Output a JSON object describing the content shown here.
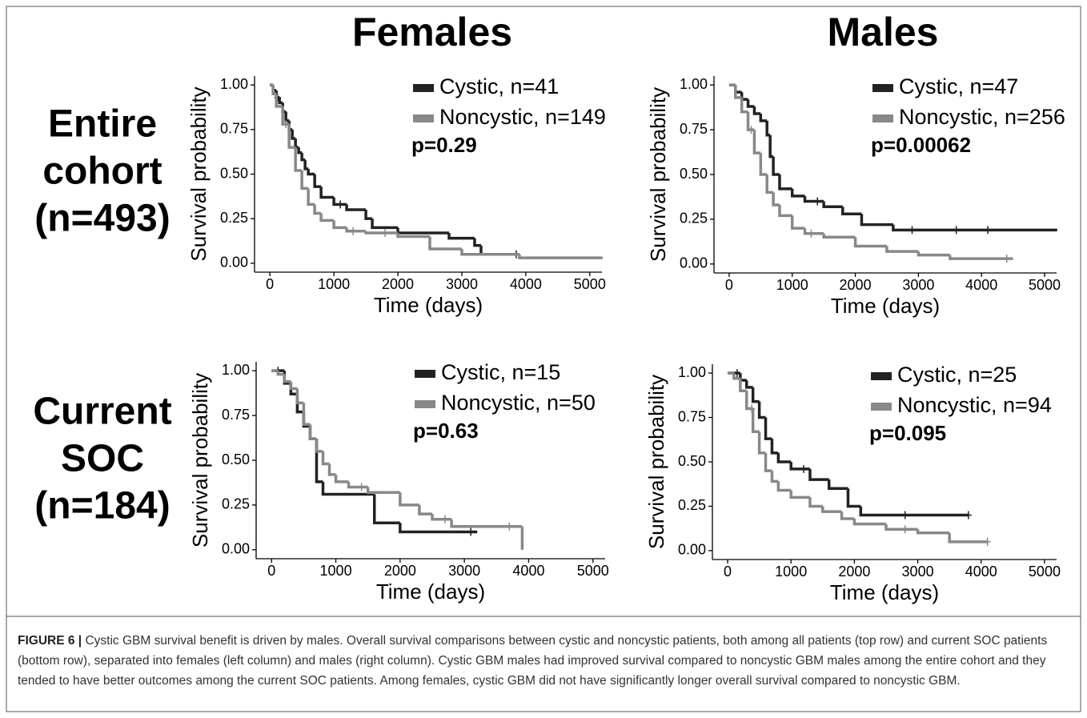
{
  "figure": {
    "column_titles": [
      "Females",
      "Males"
    ],
    "row_titles": [
      [
        "Entire",
        "cohort",
        "(n=493)"
      ],
      [
        "Current",
        "SOC",
        "(n=184)"
      ]
    ],
    "caption_label": "FIGURE 6 |",
    "caption": "Cystic GBM survival benefit is driven by males. Overall survival comparisons between cystic and noncystic patients, both among all patients (top row) and current SOC patients (bottom row), separated into females (left column) and males (right column). Cystic GBM males had improved survival compared to noncystic GBM males among the entire cohort and they tended to have better outcomes among the current SOC patients. Among females, cystic GBM did not have significantly longer overall survival compared to noncystic GBM."
  },
  "chart_data": [
    {
      "type": "step",
      "xlabel": "Time (days)",
      "ylabel": "Survival probability",
      "annotation": "p=0.29",
      "xlim": [
        -240,
        5190
      ],
      "ylim": [
        -0.05,
        1.05
      ],
      "xticks": [
        0,
        1000,
        2000,
        3000,
        4000,
        5000
      ],
      "yticks": [
        {
          "value": 0,
          "label": "0.00"
        },
        {
          "value": 0.25,
          "label": "0.25"
        },
        {
          "value": 0.5,
          "label": "0.50"
        },
        {
          "value": 0.75,
          "label": "0.75"
        },
        {
          "value": 1,
          "label": "1.00"
        }
      ],
      "series": [
        {
          "name": "Cystic, n=41",
          "color": "#222222",
          "x": [
            0,
            50,
            100,
            150,
            200,
            250,
            300,
            350,
            400,
            450,
            500,
            550,
            600,
            700,
            800,
            1000,
            1200,
            1500,
            1600,
            2000,
            2800,
            3200,
            3300,
            3900
          ],
          "values": [
            1,
            0.97,
            0.93,
            0.9,
            0.85,
            0.8,
            0.75,
            0.7,
            0.65,
            0.62,
            0.58,
            0.53,
            0.5,
            0.43,
            0.37,
            0.33,
            0.3,
            0.25,
            0.2,
            0.17,
            0.14,
            0.1,
            0.05,
            0.05
          ],
          "censored": {
            "x": [
              120,
              1100,
              3850
            ],
            "values": [
              0.93,
              0.33,
              0.05
            ]
          }
        },
        {
          "name": "Noncystic, n=149",
          "color": "#888888",
          "x": [
            0,
            50,
            100,
            200,
            300,
            400,
            500,
            600,
            700,
            800,
            1000,
            1200,
            1500,
            2000,
            2500,
            3000,
            3900,
            5200
          ],
          "values": [
            1,
            0.95,
            0.88,
            0.78,
            0.65,
            0.52,
            0.42,
            0.33,
            0.28,
            0.24,
            0.2,
            0.18,
            0.17,
            0.15,
            0.08,
            0.05,
            0.03,
            0.03
          ],
          "censored": {
            "x": [
              250,
              1300,
              1800
            ],
            "values": [
              0.78,
              0.18,
              0.17
            ]
          }
        }
      ]
    },
    {
      "type": "step",
      "xlabel": "Time (days)",
      "ylabel": "Survival probability",
      "annotation": "p=0.00062",
      "xlim": [
        -240,
        5190
      ],
      "ylim": [
        -0.05,
        1.05
      ],
      "xticks": [
        0,
        1000,
        2000,
        3000,
        4000,
        5000
      ],
      "yticks": [
        {
          "value": 0,
          "label": "0.00"
        },
        {
          "value": 0.25,
          "label": "0.25"
        },
        {
          "value": 0.5,
          "label": "0.50"
        },
        {
          "value": 0.75,
          "label": "0.75"
        },
        {
          "value": 1,
          "label": "1.00"
        }
      ],
      "series": [
        {
          "name": "Cystic, n=47",
          "color": "#222222",
          "x": [
            0,
            100,
            200,
            300,
            400,
            500,
            600,
            650,
            700,
            800,
            1000,
            1200,
            1500,
            1800,
            2100,
            2600,
            5200
          ],
          "values": [
            1,
            0.96,
            0.92,
            0.88,
            0.84,
            0.8,
            0.72,
            0.6,
            0.5,
            0.42,
            0.38,
            0.35,
            0.32,
            0.28,
            0.22,
            0.19,
            0.19
          ],
          "censored": {
            "x": [
              1400,
              2900,
              3600,
              4100
            ],
            "values": [
              0.35,
              0.19,
              0.19,
              0.19
            ]
          }
        },
        {
          "name": "Noncystic, n=256",
          "color": "#888888",
          "x": [
            0,
            100,
            200,
            300,
            400,
            500,
            600,
            700,
            800,
            1000,
            1200,
            1500,
            2000,
            2500,
            3000,
            3500,
            4500
          ],
          "values": [
            1,
            0.93,
            0.85,
            0.75,
            0.62,
            0.5,
            0.4,
            0.33,
            0.27,
            0.2,
            0.17,
            0.15,
            0.1,
            0.07,
            0.05,
            0.03,
            0.03
          ],
          "censored": {
            "x": [
              350,
              1300,
              4400
            ],
            "values": [
              0.75,
              0.17,
              0.03
            ]
          }
        }
      ]
    },
    {
      "type": "step",
      "xlabel": "Time (days)",
      "ylabel": "Survival probability",
      "annotation": "p=0.63",
      "xlim": [
        -240,
        5190
      ],
      "ylim": [
        -0.05,
        1.05
      ],
      "xticks": [
        0,
        1000,
        2000,
        3000,
        4000,
        5000
      ],
      "yticks": [
        {
          "value": 0,
          "label": "0.00"
        },
        {
          "value": 0.25,
          "label": "0.25"
        },
        {
          "value": 0.5,
          "label": "0.50"
        },
        {
          "value": 0.75,
          "label": "0.75"
        },
        {
          "value": 1,
          "label": "1.00"
        }
      ],
      "series": [
        {
          "name": "Cystic, n=15",
          "color": "#222222",
          "x": [
            0,
            200,
            300,
            400,
            500,
            600,
            700,
            800,
            1000,
            1600,
            2000,
            3200
          ],
          "values": [
            1,
            0.93,
            0.87,
            0.77,
            0.69,
            0.62,
            0.38,
            0.31,
            0.31,
            0.15,
            0.1,
            0.1
          ],
          "censored": {
            "x": [
              100,
              3100
            ],
            "values": [
              1,
              0.1
            ]
          }
        },
        {
          "name": "Noncystic, n=50",
          "color": "#888888",
          "x": [
            0,
            100,
            200,
            300,
            400,
            500,
            600,
            700,
            800,
            900,
            1000,
            1200,
            1500,
            2000,
            2300,
            2500,
            2800,
            3900,
            3900
          ],
          "values": [
            1,
            0.98,
            0.94,
            0.9,
            0.82,
            0.7,
            0.62,
            0.55,
            0.48,
            0.42,
            0.38,
            0.35,
            0.32,
            0.25,
            0.2,
            0.17,
            0.13,
            0.13,
            0
          ],
          "censored": {
            "x": [
              1400,
              2700,
              3700
            ],
            "values": [
              0.35,
              0.17,
              0.13
            ]
          }
        }
      ]
    },
    {
      "type": "step",
      "xlabel": "Time (days)",
      "ylabel": "Survival probability",
      "annotation": "p=0.095",
      "xlim": [
        -240,
        5190
      ],
      "ylim": [
        -0.05,
        1.05
      ],
      "xticks": [
        0,
        1000,
        2000,
        3000,
        4000,
        5000
      ],
      "yticks": [
        {
          "value": 0,
          "label": "0.00"
        },
        {
          "value": 0.25,
          "label": "0.25"
        },
        {
          "value": 0.5,
          "label": "0.50"
        },
        {
          "value": 0.75,
          "label": "0.75"
        },
        {
          "value": 1,
          "label": "1.00"
        }
      ],
      "series": [
        {
          "name": "Cystic, n=25",
          "color": "#222222",
          "x": [
            0,
            200,
            300,
            400,
            500,
            600,
            700,
            800,
            1000,
            1300,
            1600,
            1900,
            2100,
            3800
          ],
          "values": [
            1,
            0.96,
            0.92,
            0.84,
            0.75,
            0.63,
            0.55,
            0.5,
            0.46,
            0.4,
            0.35,
            0.25,
            0.2,
            0.2
          ],
          "censored": {
            "x": [
              150,
              1200,
              2800,
              3800
            ],
            "values": [
              1,
              0.46,
              0.2,
              0.2
            ]
          }
        },
        {
          "name": "Noncystic, n=94",
          "color": "#888888",
          "x": [
            0,
            100,
            200,
            300,
            400,
            500,
            600,
            700,
            800,
            1000,
            1300,
            1500,
            1800,
            2000,
            2500,
            3000,
            3500,
            4100
          ],
          "values": [
            1,
            0.97,
            0.9,
            0.8,
            0.67,
            0.55,
            0.45,
            0.39,
            0.34,
            0.3,
            0.25,
            0.22,
            0.18,
            0.15,
            0.12,
            0.1,
            0.05,
            0.05
          ],
          "censored": {
            "x": [
              380,
              2800,
              4100
            ],
            "values": [
              0.8,
              0.12,
              0.05
            ]
          }
        }
      ]
    }
  ]
}
